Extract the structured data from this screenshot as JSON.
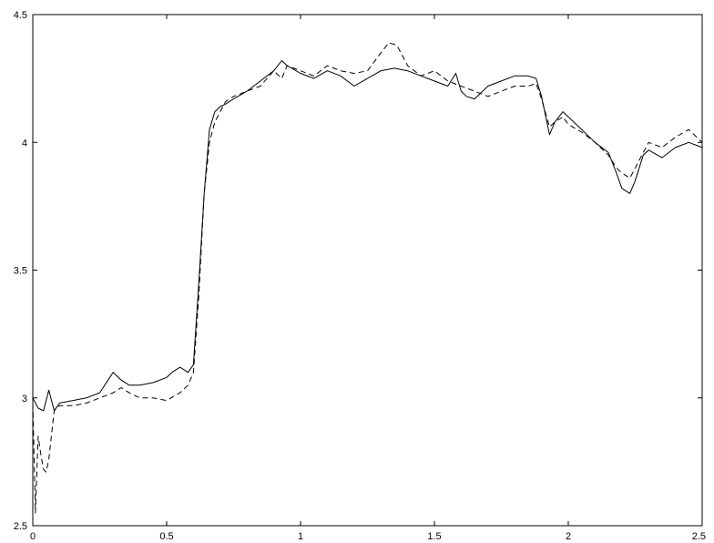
{
  "chart_data": {
    "type": "line",
    "title": "",
    "xlabel": "",
    "ylabel": "",
    "xlim": [
      0,
      2.5
    ],
    "ylim": [
      2.5,
      4.5
    ],
    "grid": false,
    "xticks": [
      0,
      0.5,
      1,
      1.5,
      2,
      2.5
    ],
    "yticks": [
      2.5,
      3,
      3.5,
      4,
      4.5
    ],
    "xtick_labels": [
      "0",
      "0.5",
      "1",
      "1.5",
      "2",
      "2.5"
    ],
    "ytick_labels": [
      "2.5",
      "3",
      "3.5",
      "4",
      "4.5"
    ],
    "series": [
      {
        "style": "solid",
        "color": "#000000",
        "x": [
          0,
          0.02,
          0.04,
          0.06,
          0.08,
          0.1,
          0.15,
          0.2,
          0.25,
          0.3,
          0.33,
          0.36,
          0.4,
          0.45,
          0.5,
          0.52,
          0.55,
          0.58,
          0.6,
          0.62,
          0.64,
          0.66,
          0.68,
          0.7,
          0.72,
          0.75,
          0.8,
          0.85,
          0.9,
          0.93,
          0.95,
          1.0,
          1.05,
          1.1,
          1.15,
          1.2,
          1.25,
          1.3,
          1.35,
          1.4,
          1.45,
          1.5,
          1.55,
          1.58,
          1.6,
          1.62,
          1.65,
          1.7,
          1.75,
          1.8,
          1.85,
          1.88,
          1.9,
          1.93,
          1.95,
          1.98,
          2.0,
          2.05,
          2.1,
          2.15,
          2.18,
          2.2,
          2.23,
          2.25,
          2.28,
          2.3,
          2.35,
          2.4,
          2.45,
          2.5
        ],
        "y": [
          3.0,
          2.96,
          2.95,
          3.03,
          2.95,
          2.98,
          2.99,
          3.0,
          3.02,
          3.1,
          3.07,
          3.05,
          3.05,
          3.06,
          3.08,
          3.1,
          3.12,
          3.1,
          3.13,
          3.45,
          3.8,
          4.05,
          4.12,
          4.14,
          4.15,
          4.17,
          4.2,
          4.24,
          4.28,
          4.32,
          4.3,
          4.27,
          4.25,
          4.28,
          4.26,
          4.22,
          4.25,
          4.28,
          4.29,
          4.28,
          4.26,
          4.24,
          4.22,
          4.27,
          4.2,
          4.18,
          4.17,
          4.22,
          4.24,
          4.26,
          4.26,
          4.25,
          4.18,
          4.03,
          4.08,
          4.12,
          4.1,
          4.05,
          4.0,
          3.96,
          3.88,
          3.82,
          3.8,
          3.85,
          3.95,
          3.97,
          3.94,
          3.98,
          4.0,
          3.98
        ]
      },
      {
        "style": "dashed",
        "color": "#000000",
        "x": [
          0,
          0.01,
          0.02,
          0.03,
          0.04,
          0.05,
          0.06,
          0.08,
          0.1,
          0.15,
          0.2,
          0.25,
          0.3,
          0.33,
          0.36,
          0.4,
          0.45,
          0.5,
          0.55,
          0.58,
          0.6,
          0.62,
          0.64,
          0.66,
          0.68,
          0.7,
          0.72,
          0.75,
          0.8,
          0.85,
          0.9,
          0.93,
          0.95,
          1.0,
          1.05,
          1.1,
          1.15,
          1.2,
          1.25,
          1.3,
          1.33,
          1.36,
          1.4,
          1.45,
          1.5,
          1.55,
          1.6,
          1.65,
          1.7,
          1.75,
          1.8,
          1.85,
          1.88,
          1.9,
          1.93,
          1.95,
          1.98,
          2.0,
          2.05,
          2.1,
          2.15,
          2.18,
          2.2,
          2.23,
          2.25,
          2.28,
          2.3,
          2.35,
          2.4,
          2.45,
          2.5
        ],
        "y": [
          2.98,
          2.55,
          2.85,
          2.78,
          2.72,
          2.71,
          2.76,
          2.95,
          2.97,
          2.97,
          2.98,
          3.0,
          3.02,
          3.04,
          3.02,
          3.0,
          3.0,
          2.99,
          3.02,
          3.05,
          3.1,
          3.4,
          3.8,
          4.0,
          4.08,
          4.12,
          4.16,
          4.18,
          4.2,
          4.22,
          4.28,
          4.25,
          4.3,
          4.28,
          4.26,
          4.3,
          4.28,
          4.27,
          4.28,
          4.35,
          4.39,
          4.38,
          4.3,
          4.26,
          4.28,
          4.24,
          4.22,
          4.2,
          4.18,
          4.2,
          4.22,
          4.22,
          4.23,
          4.17,
          4.06,
          4.08,
          4.1,
          4.07,
          4.04,
          4.0,
          3.95,
          3.9,
          3.88,
          3.86,
          3.9,
          3.96,
          4.0,
          3.98,
          4.02,
          4.05,
          4.0
        ]
      }
    ]
  }
}
